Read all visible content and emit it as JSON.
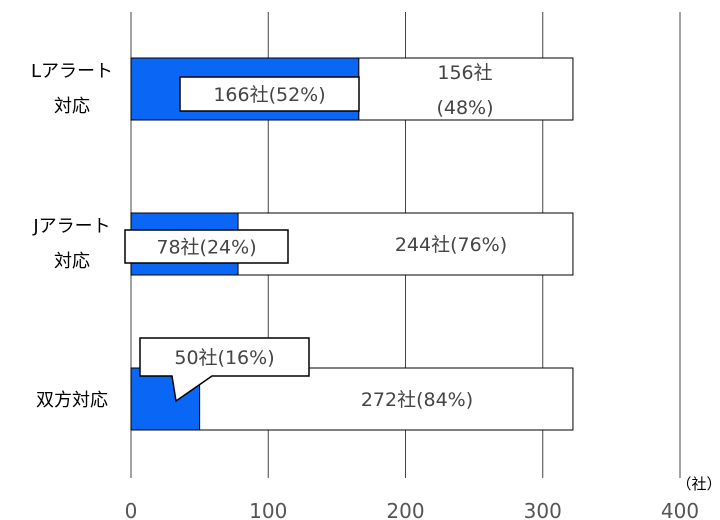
{
  "chart_data": {
    "type": "bar",
    "orientation": "horizontal",
    "stacked": true,
    "categories": [
      [
        "Lアラート",
        "対応"
      ],
      [
        "Jアラート",
        "対応"
      ],
      [
        "双方対応"
      ]
    ],
    "series": [
      {
        "values": [
          166,
          78,
          50
        ],
        "color": "#0a66f5"
      },
      {
        "values": [
          156,
          244,
          272
        ],
        "color": "#ffffff"
      }
    ],
    "highlight_labels": [
      "166社(52%)",
      "78社(24%)",
      "50社(16%)"
    ],
    "rest_labels": [
      [
        "156社",
        "(48%)"
      ],
      [
        "244社(76%)"
      ],
      [
        "272社(84%)"
      ]
    ],
    "x_ticks": [
      "0",
      "100",
      "200",
      "300",
      "400"
    ],
    "xlim": [
      0,
      400
    ],
    "unit": "（社）",
    "grid": true
  }
}
